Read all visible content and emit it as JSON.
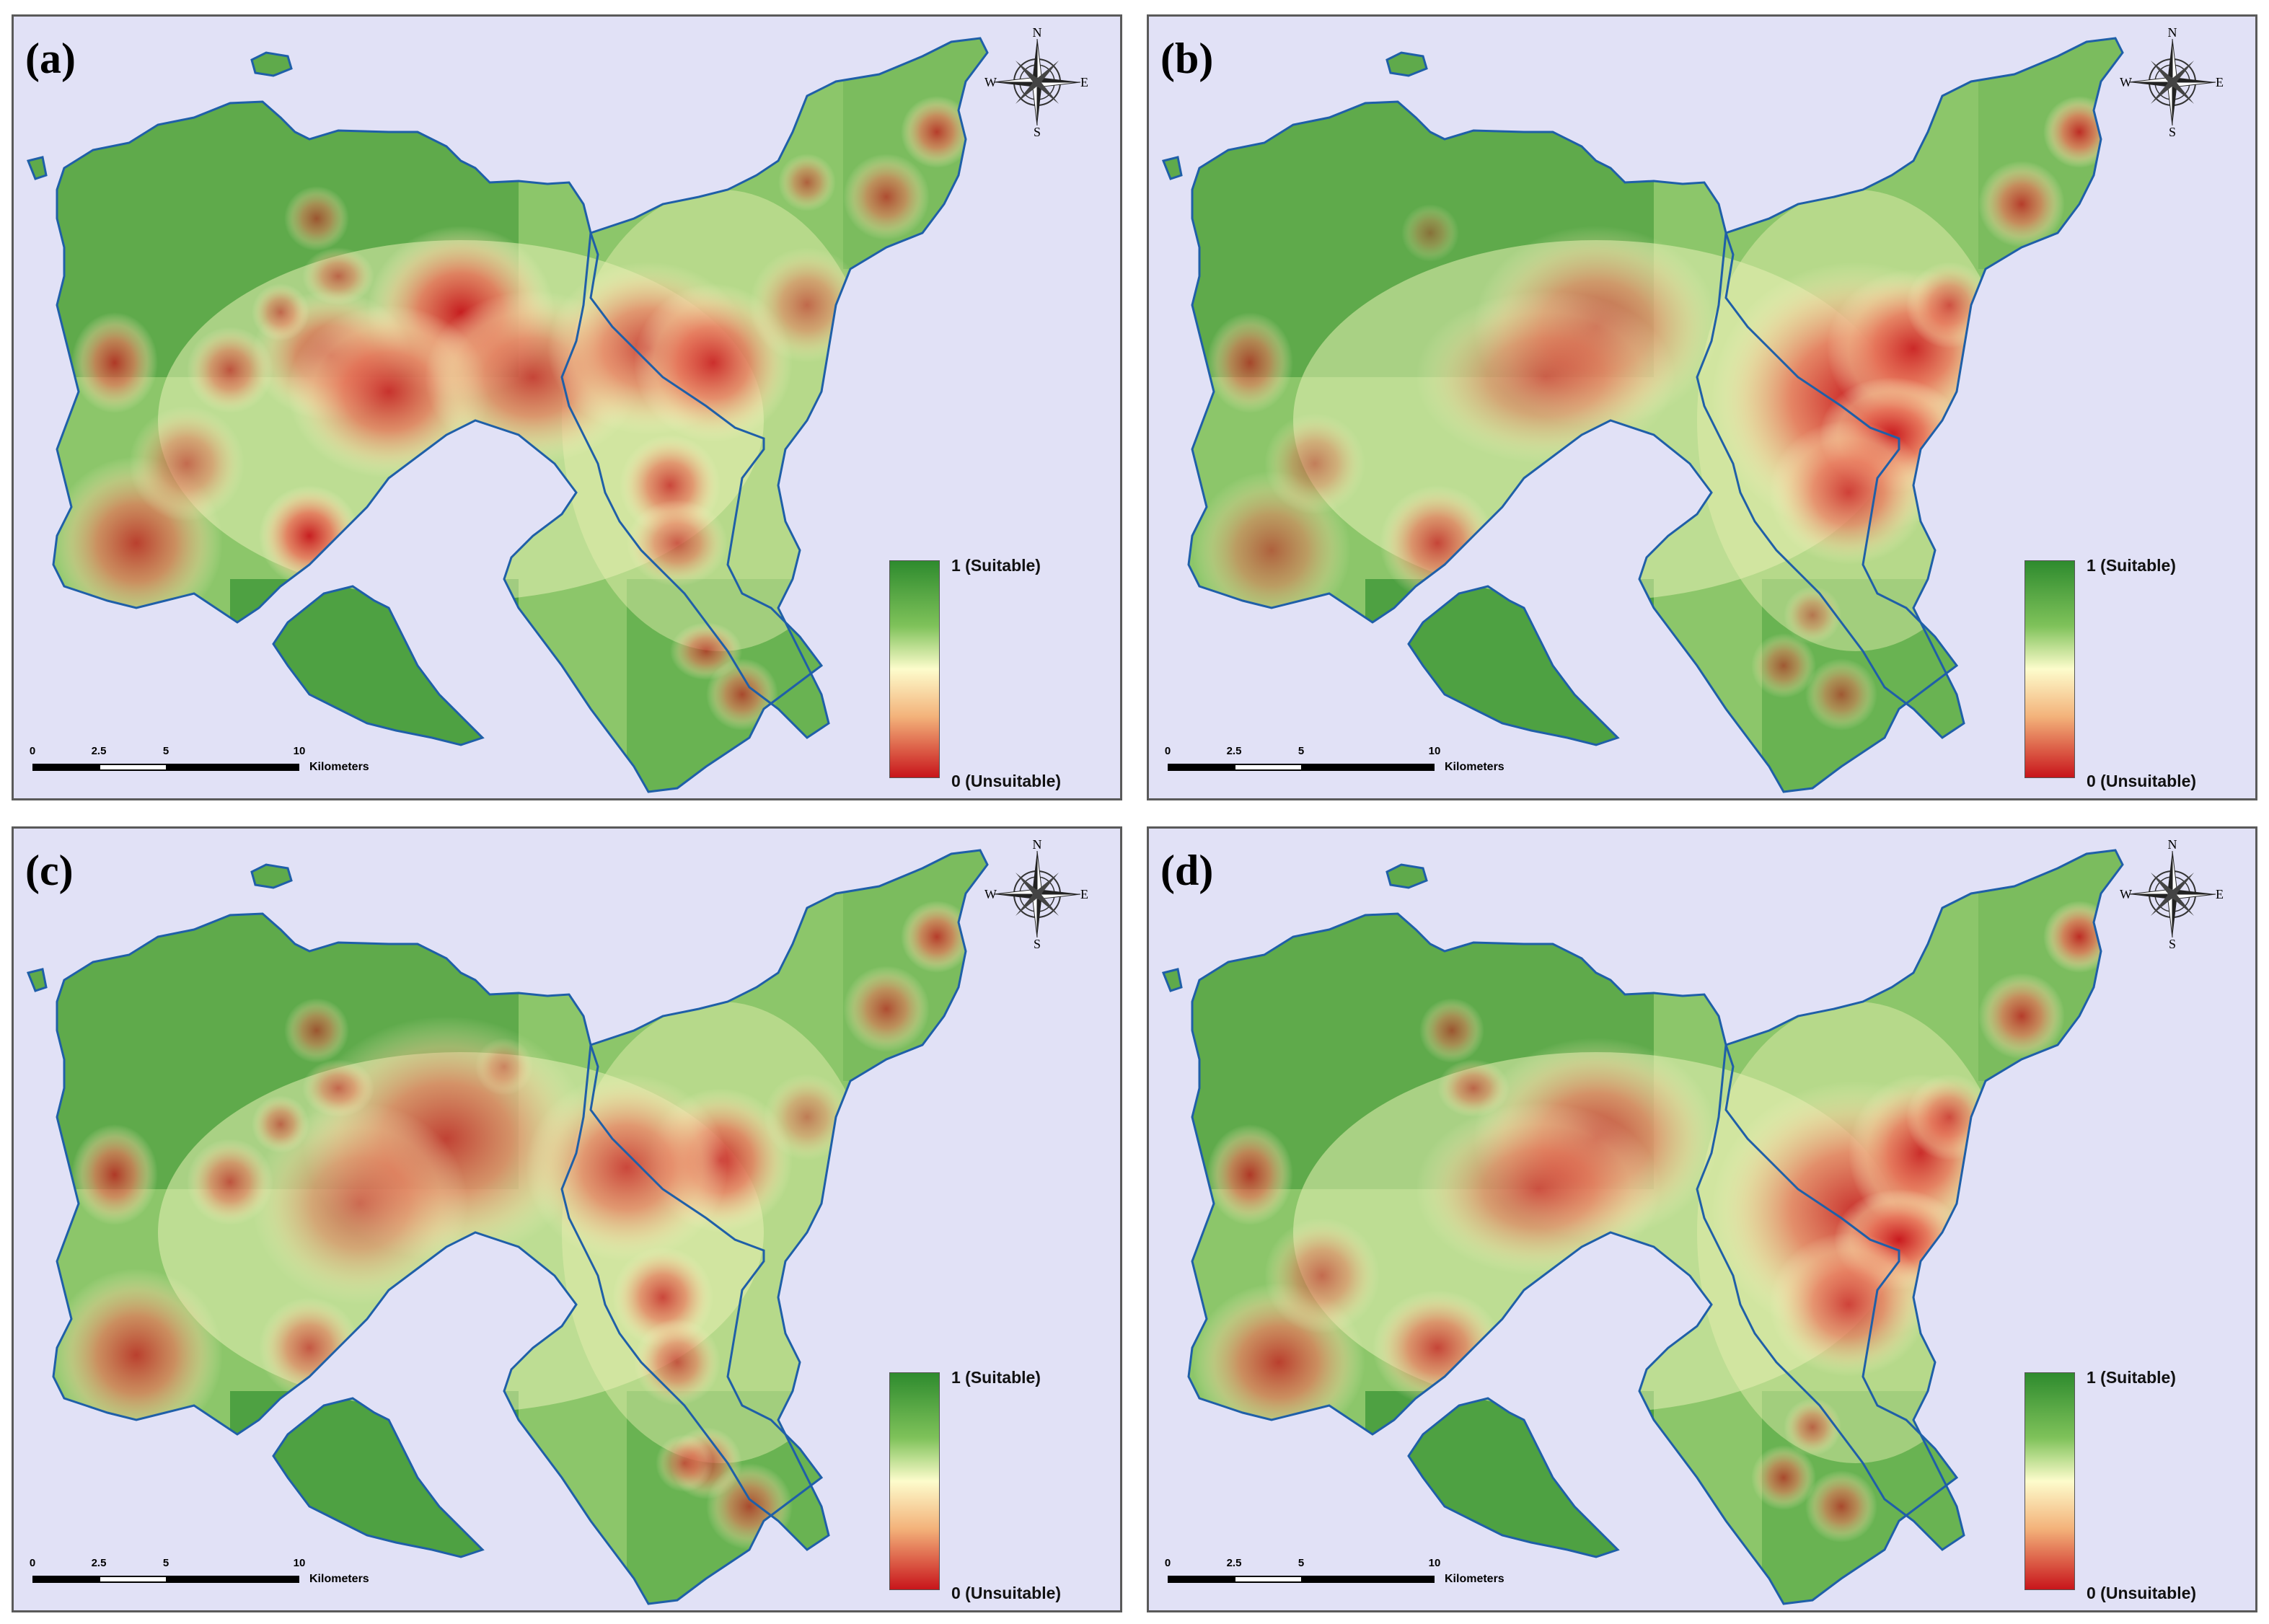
{
  "figure": {
    "panels": [
      {
        "id": "a",
        "label": "(a)"
      },
      {
        "id": "b",
        "label": "(b)"
      },
      {
        "id": "c",
        "label": "(c)"
      },
      {
        "id": "d",
        "label": "(d)"
      }
    ],
    "legend": {
      "top": "1  (Suitable)",
      "bottom": "0  (Unsuitable)"
    },
    "scalebar": {
      "ticks": [
        "0",
        "2.5",
        "5",
        "10"
      ],
      "unit": "Kilometers"
    },
    "compass": {
      "n": "N",
      "s": "S",
      "e": "E",
      "w": "W"
    },
    "colors": {
      "suitable": "#2e8b2e",
      "mid": "#fdfccc",
      "unsuitable": "#c8151b",
      "water": "#e1e1f6",
      "coast": "#1f5fa8"
    }
  }
}
